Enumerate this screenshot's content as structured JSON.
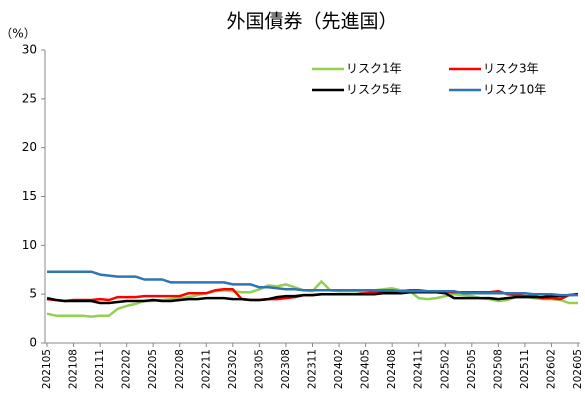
{
  "chart_data": {
    "type": "line",
    "title": "外国債券（先進国）",
    "y_label": "（%）",
    "categories": [
      "202105",
      null,
      null,
      "202108",
      null,
      null,
      "202111",
      null,
      null,
      "202202",
      null,
      null,
      "202205",
      null,
      null,
      "202208",
      null,
      null,
      "202211",
      null,
      null,
      "202302",
      null,
      null,
      "202305",
      null,
      null,
      "202308",
      null,
      null,
      "202311",
      null,
      null,
      "202402",
      null,
      null,
      "202405",
      null,
      null,
      "202408",
      null,
      null,
      "202411",
      null,
      null,
      "202502",
      null,
      null,
      "202505",
      null,
      null,
      "202508",
      null,
      null,
      "202511",
      null,
      null,
      "202602",
      null,
      null,
      "202605"
    ],
    "series": [
      {
        "name": "リスク1年",
        "color": "#92d050",
        "values": [
          3.0,
          2.8,
          2.8,
          2.8,
          2.8,
          2.7,
          2.8,
          2.8,
          3.5,
          3.8,
          4.0,
          4.3,
          4.3,
          4.4,
          4.5,
          4.6,
          4.7,
          4.9,
          5.1,
          5.3,
          5.4,
          5.3,
          5.2,
          5.2,
          5.5,
          5.9,
          5.8,
          6.0,
          5.7,
          5.4,
          5.3,
          6.3,
          5.4,
          5.3,
          5.3,
          5.3,
          5.3,
          5.4,
          5.5,
          5.6,
          5.4,
          5.3,
          4.6,
          4.5,
          4.6,
          4.8,
          5.0,
          4.9,
          4.8,
          4.6,
          4.5,
          4.3,
          4.4,
          4.7,
          4.8,
          4.6,
          4.5,
          4.5,
          4.4,
          4.1,
          4.1
        ]
      },
      {
        "name": "リスク3年",
        "color": "#ff0000",
        "values": [
          4.5,
          4.4,
          4.3,
          4.4,
          4.4,
          4.4,
          4.5,
          4.4,
          4.7,
          4.7,
          4.7,
          4.8,
          4.8,
          4.8,
          4.8,
          4.8,
          5.1,
          5.1,
          5.1,
          5.4,
          5.5,
          5.5,
          4.5,
          4.4,
          4.4,
          4.5,
          4.5,
          4.6,
          4.7,
          4.9,
          4.9,
          5.0,
          5.0,
          5.0,
          5.0,
          5.0,
          5.1,
          5.2,
          5.3,
          5.3,
          5.3,
          5.4,
          5.4,
          5.3,
          5.2,
          5.2,
          5.2,
          5.2,
          5.2,
          5.2,
          5.2,
          5.3,
          5.0,
          4.9,
          4.8,
          4.8,
          4.6,
          4.6,
          4.5,
          4.9,
          5.0
        ]
      },
      {
        "name": "リスク5年",
        "color": "#000000",
        "values": [
          4.6,
          4.4,
          4.3,
          4.3,
          4.3,
          4.3,
          4.1,
          4.1,
          4.2,
          4.3,
          4.3,
          4.3,
          4.4,
          4.3,
          4.3,
          4.4,
          4.5,
          4.5,
          4.6,
          4.6,
          4.6,
          4.5,
          4.5,
          4.4,
          4.4,
          4.5,
          4.7,
          4.8,
          4.8,
          4.9,
          4.9,
          5.0,
          5.0,
          5.0,
          5.0,
          5.0,
          5.0,
          5.0,
          5.1,
          5.1,
          5.1,
          5.2,
          5.2,
          5.2,
          5.2,
          5.1,
          4.6,
          4.6,
          4.6,
          4.6,
          4.6,
          4.5,
          4.6,
          4.7,
          4.7,
          4.7,
          4.7,
          4.8,
          4.8,
          4.9,
          5.0
        ]
      },
      {
        "name": "リスク10年",
        "color": "#2e75b6",
        "values": [
          7.3,
          7.3,
          7.3,
          7.3,
          7.3,
          7.3,
          7.0,
          6.9,
          6.8,
          6.8,
          6.8,
          6.5,
          6.5,
          6.5,
          6.2,
          6.2,
          6.2,
          6.2,
          6.2,
          6.2,
          6.2,
          6.0,
          6.0,
          6.0,
          5.7,
          5.7,
          5.6,
          5.5,
          5.5,
          5.4,
          5.4,
          5.4,
          5.4,
          5.4,
          5.4,
          5.4,
          5.4,
          5.4,
          5.4,
          5.4,
          5.3,
          5.3,
          5.3,
          5.3,
          5.3,
          5.3,
          5.3,
          5.1,
          5.1,
          5.1,
          5.1,
          5.1,
          5.1,
          5.1,
          5.1,
          5.0,
          5.0,
          5.0,
          4.9,
          4.9,
          4.9
        ]
      }
    ],
    "ylim": [
      0,
      30
    ],
    "yticks": [
      0,
      5,
      10,
      15,
      20,
      25,
      30
    ],
    "grid": false
  }
}
